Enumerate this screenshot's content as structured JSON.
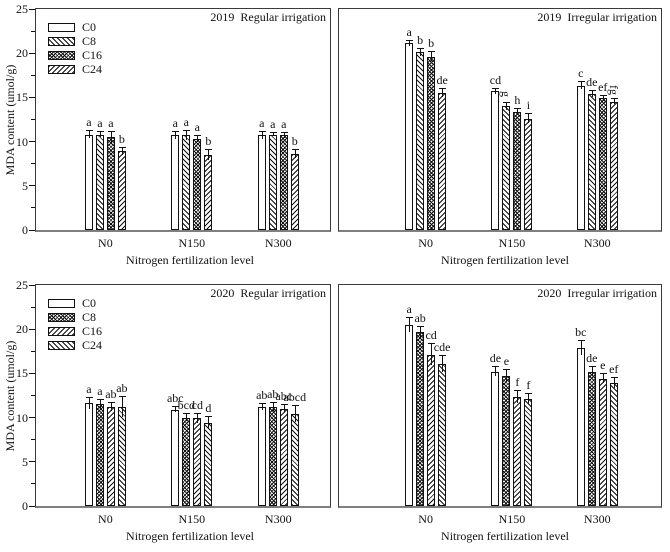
{
  "figure": {
    "ylabel": "MDA content (umol/g)",
    "xlabel": "Nitrogen fertilization level",
    "categories": [
      "N0",
      "N150",
      "N300"
    ],
    "yticks": [
      0,
      5,
      10,
      15,
      20,
      25
    ],
    "ylim": [
      0,
      25
    ],
    "colors": {
      "bar_edge": "#111111",
      "axis": "#3a3a3a",
      "baseline": "#7f7f7f",
      "background": "#ffffff"
    }
  },
  "chart_data": [
    {
      "type": "bar",
      "title": "2019  Regular irrigation",
      "year": "2019",
      "irrigation": "Regular irrigation",
      "show_legend": true,
      "show_yaxis": true,
      "legend_position": "top-left",
      "categories": [
        "N0",
        "N150",
        "N300"
      ],
      "ylim": [
        0,
        25
      ],
      "ylabel": "MDA content (umol/g)",
      "xlabel": "Nitrogen fertilization level",
      "series": [
        {
          "name": "C0",
          "pattern": "open",
          "values": [
            10.8,
            10.7,
            10.7
          ],
          "errors": [
            0.4,
            0.4,
            0.4
          ],
          "letters": [
            "a",
            "a",
            "a"
          ]
        },
        {
          "name": "C8",
          "pattern": "diag-forward",
          "values": [
            10.8,
            10.7,
            10.8
          ],
          "errors": [
            0.3,
            0.5,
            0.2
          ],
          "letters": [
            "a",
            "a",
            "a"
          ]
        },
        {
          "name": "C16",
          "pattern": "crosshatch",
          "values": [
            10.5,
            10.3,
            10.7
          ],
          "errors": [
            0.6,
            0.3,
            0.3
          ],
          "letters": [
            "a",
            "a",
            "a"
          ]
        },
        {
          "name": "C24",
          "pattern": "diag-back",
          "values": [
            8.9,
            8.5,
            8.6
          ],
          "errors": [
            0.4,
            0.6,
            0.4
          ],
          "letters": [
            "b",
            "b",
            "b"
          ]
        }
      ]
    },
    {
      "type": "bar",
      "title": "2019  Irregular irrigation",
      "year": "2019",
      "irrigation": "Irregular irrigation",
      "show_legend": false,
      "show_yaxis": false,
      "categories": [
        "N0",
        "N150",
        "N300"
      ],
      "ylim": [
        0,
        25
      ],
      "ylabel": "MDA content (umol/g)",
      "xlabel": "Nitrogen fertilization level",
      "series": [
        {
          "name": "C0",
          "pattern": "open",
          "values": [
            21.1,
            15.7,
            16.3
          ],
          "errors": [
            0.3,
            0.3,
            0.4
          ],
          "letters": [
            "a",
            "cd",
            "c"
          ]
        },
        {
          "name": "C8",
          "pattern": "diag-forward",
          "values": [
            20.1,
            14.0,
            15.4
          ],
          "errors": [
            0.4,
            0.4,
            0.3
          ],
          "letters": [
            "b",
            "g",
            "de"
          ],
          "letters_rotated": [
            false,
            true,
            false
          ]
        },
        {
          "name": "C16",
          "pattern": "crosshatch",
          "values": [
            19.6,
            13.4,
            14.9
          ],
          "errors": [
            0.5,
            0.3,
            0.3
          ],
          "letters": [
            "b",
            "h",
            "ef"
          ]
        },
        {
          "name": "C24",
          "pattern": "diag-back",
          "values": [
            15.5,
            12.6,
            14.5
          ],
          "errors": [
            0.4,
            0.5,
            0.3
          ],
          "letters": [
            "de",
            "i",
            "fg"
          ],
          "letters_rotated": [
            false,
            false,
            true
          ]
        }
      ]
    },
    {
      "type": "bar",
      "title": "2020  Regular irrigation",
      "year": "2020",
      "irrigation": "Regular irrigation",
      "show_legend": true,
      "show_yaxis": true,
      "legend_position": "top-left",
      "categories": [
        "N0",
        "N150",
        "N300"
      ],
      "ylim": [
        0,
        25
      ],
      "ylabel": "MDA content (umol/g)",
      "xlabel": "Nitrogen fertilization level",
      "series": [
        {
          "name": "C0",
          "pattern": "open",
          "values": [
            11.6,
            10.9,
            11.2
          ],
          "errors": [
            0.6,
            0.3,
            0.3
          ],
          "letters": [
            "a",
            "abc",
            "ab"
          ]
        },
        {
          "name": "C8",
          "pattern": "crosshatch",
          "values": [
            11.5,
            10.0,
            11.2
          ],
          "errors": [
            0.5,
            0.4,
            0.5
          ],
          "letters": [
            "a",
            "bcd",
            "ab"
          ]
        },
        {
          "name": "C16",
          "pattern": "diag-back",
          "values": [
            11.2,
            9.9,
            11.0
          ],
          "errors": [
            0.5,
            0.5,
            0.4
          ],
          "letters": [
            "ab",
            "cd",
            "abc"
          ]
        },
        {
          "name": "C24",
          "pattern": "diag-forward",
          "values": [
            11.2,
            9.4,
            10.4
          ],
          "errors": [
            1.1,
            0.7,
            0.9
          ],
          "letters": [
            "ab",
            "d",
            "abcd"
          ]
        }
      ]
    },
    {
      "type": "bar",
      "title": "2020  Irregular irrigation",
      "year": "2020",
      "irrigation": "Irregular irrigation",
      "show_legend": false,
      "show_yaxis": false,
      "categories": [
        "N0",
        "N150",
        "N300"
      ],
      "ylim": [
        0,
        25
      ],
      "ylabel": "MDA content (umol/g)",
      "xlabel": "Nitrogen fertilization level",
      "series": [
        {
          "name": "C0",
          "pattern": "open",
          "values": [
            20.5,
            15.2,
            17.9
          ],
          "errors": [
            0.8,
            0.5,
            0.8
          ],
          "letters": [
            "a",
            "de",
            "bc"
          ]
        },
        {
          "name": "C8",
          "pattern": "crosshatch",
          "values": [
            19.7,
            14.7,
            15.2
          ],
          "errors": [
            0.6,
            0.7,
            0.5
          ],
          "letters": [
            "ab",
            "e",
            "de"
          ]
        },
        {
          "name": "C16",
          "pattern": "diag-back",
          "values": [
            17.1,
            12.3,
            14.4
          ],
          "errors": [
            1.2,
            0.7,
            0.5
          ],
          "letters": [
            "cd",
            "f",
            "e"
          ]
        },
        {
          "name": "C24",
          "pattern": "diag-forward",
          "values": [
            16.1,
            12.1,
            13.9
          ],
          "errors": [
            0.9,
            0.6,
            0.6
          ],
          "letters": [
            "cde",
            "f",
            "ef"
          ]
        }
      ]
    }
  ]
}
